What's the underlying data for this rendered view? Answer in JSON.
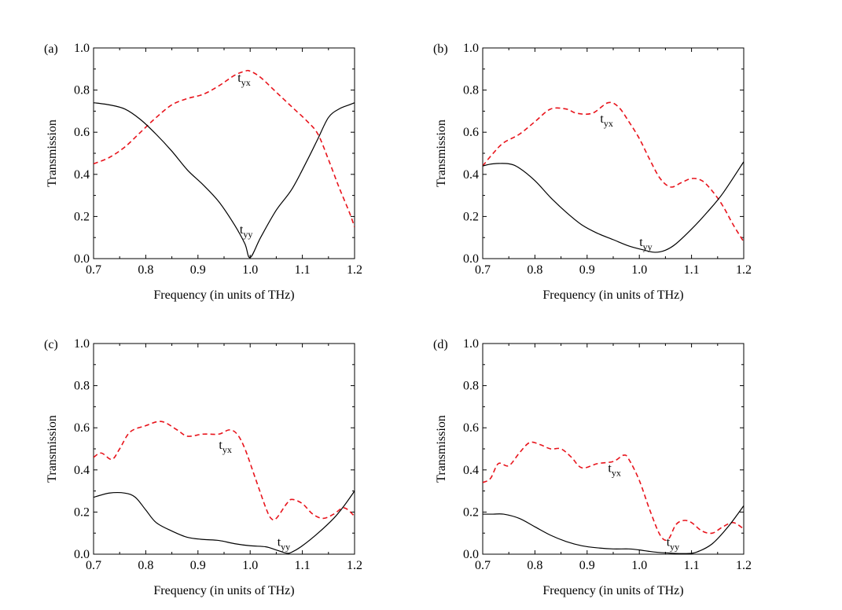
{
  "figure": {
    "colors": {
      "tyx": "#e8141c",
      "tyy": "#000000",
      "axis": "#000000"
    }
  },
  "chart_data": [
    {
      "type": "line",
      "panel_label": "(a)",
      "xlabel": "Frequency (in units of THz)",
      "ylabel": "Transmission",
      "xlim": [
        0.7,
        1.2
      ],
      "ylim": [
        0.0,
        1.0
      ],
      "xticks": [
        "0.7",
        "0.8",
        "0.9",
        "1.0",
        "1.1",
        "1.2"
      ],
      "yticks": [
        "0.0",
        "0.2",
        "0.4",
        "0.6",
        "0.8",
        "1.0"
      ],
      "grid": false,
      "series": [
        {
          "name": "tyx",
          "label_main": "t",
          "label_sub": "yx",
          "style": "dashed",
          "color": "#e8141c",
          "label_at": [
            0.976,
            0.84
          ],
          "x": [
            0.7,
            0.73,
            0.76,
            0.79,
            0.82,
            0.85,
            0.88,
            0.91,
            0.94,
            0.97,
            0.99,
            1.0,
            1.02,
            1.05,
            1.08,
            1.11,
            1.13,
            1.15,
            1.17,
            1.19,
            1.2
          ],
          "y": [
            0.45,
            0.48,
            0.53,
            0.6,
            0.67,
            0.73,
            0.76,
            0.78,
            0.82,
            0.87,
            0.89,
            0.89,
            0.86,
            0.79,
            0.72,
            0.65,
            0.59,
            0.47,
            0.34,
            0.22,
            0.15
          ]
        },
        {
          "name": "tyy",
          "label_main": "t",
          "label_sub": "yy",
          "style": "solid",
          "color": "#000000",
          "label_at": [
            0.98,
            0.12
          ],
          "x": [
            0.7,
            0.73,
            0.76,
            0.79,
            0.82,
            0.85,
            0.88,
            0.91,
            0.94,
            0.97,
            0.99,
            1.0,
            1.02,
            1.05,
            1.08,
            1.11,
            1.13,
            1.15,
            1.17,
            1.19,
            1.2
          ],
          "y": [
            0.74,
            0.73,
            0.71,
            0.66,
            0.59,
            0.51,
            0.42,
            0.35,
            0.27,
            0.16,
            0.07,
            0.005,
            0.1,
            0.23,
            0.33,
            0.47,
            0.57,
            0.67,
            0.71,
            0.73,
            0.74
          ]
        }
      ]
    },
    {
      "type": "line",
      "panel_label": "(b)",
      "xlabel": "Frequency (in units of THz)",
      "ylabel": "Transmission",
      "xlim": [
        0.7,
        1.2
      ],
      "ylim": [
        0.0,
        1.0
      ],
      "xticks": [
        "0.7",
        "0.8",
        "0.9",
        "1.0",
        "1.1",
        "1.2"
      ],
      "yticks": [
        "0.0",
        "0.2",
        "0.4",
        "0.6",
        "0.8",
        "1.0"
      ],
      "grid": false,
      "series": [
        {
          "name": "tyx",
          "label_main": "t",
          "label_sub": "yx",
          "style": "dashed",
          "color": "#e8141c",
          "label_at": [
            0.925,
            0.645
          ],
          "x": [
            0.7,
            0.72,
            0.74,
            0.77,
            0.8,
            0.83,
            0.86,
            0.88,
            0.91,
            0.94,
            0.96,
            0.98,
            1.0,
            1.02,
            1.04,
            1.06,
            1.08,
            1.1,
            1.12,
            1.14,
            1.16,
            1.18,
            1.2
          ],
          "y": [
            0.44,
            0.5,
            0.55,
            0.59,
            0.65,
            0.71,
            0.71,
            0.69,
            0.69,
            0.74,
            0.72,
            0.65,
            0.57,
            0.47,
            0.38,
            0.34,
            0.36,
            0.38,
            0.37,
            0.32,
            0.25,
            0.16,
            0.08
          ]
        },
        {
          "name": "tyy",
          "label_main": "t",
          "label_sub": "yy",
          "style": "solid",
          "color": "#000000",
          "label_at": [
            1.0,
            0.06
          ],
          "x": [
            0.7,
            0.72,
            0.75,
            0.77,
            0.8,
            0.83,
            0.86,
            0.89,
            0.92,
            0.95,
            0.98,
            1.01,
            1.03,
            1.05,
            1.07,
            1.1,
            1.13,
            1.16,
            1.2
          ],
          "y": [
            0.44,
            0.45,
            0.45,
            0.43,
            0.37,
            0.29,
            0.22,
            0.16,
            0.12,
            0.09,
            0.06,
            0.04,
            0.03,
            0.04,
            0.07,
            0.14,
            0.22,
            0.31,
            0.46
          ]
        }
      ]
    },
    {
      "type": "line",
      "panel_label": "(c)",
      "xlabel": "Frequency (in units of THz)",
      "ylabel": "Transmission",
      "xlim": [
        0.7,
        1.2
      ],
      "ylim": [
        0.0,
        1.0
      ],
      "xticks": [
        "0.7",
        "0.8",
        "0.9",
        "1.0",
        "1.1",
        "1.2"
      ],
      "yticks": [
        "0.0",
        "0.2",
        "0.4",
        "0.6",
        "0.8",
        "1.0"
      ],
      "grid": false,
      "series": [
        {
          "name": "tyx",
          "label_main": "t",
          "label_sub": "yx",
          "style": "dashed",
          "color": "#e8141c",
          "label_at": [
            0.94,
            0.5
          ],
          "x": [
            0.7,
            0.715,
            0.735,
            0.75,
            0.77,
            0.8,
            0.83,
            0.86,
            0.88,
            0.91,
            0.94,
            0.96,
            0.975,
            0.99,
            1.01,
            1.03,
            1.04,
            1.05,
            1.07,
            1.08,
            1.1,
            1.12,
            1.14,
            1.16,
            1.18,
            1.2
          ],
          "y": [
            0.46,
            0.48,
            0.45,
            0.5,
            0.58,
            0.61,
            0.63,
            0.59,
            0.56,
            0.57,
            0.57,
            0.59,
            0.57,
            0.5,
            0.36,
            0.22,
            0.17,
            0.17,
            0.24,
            0.26,
            0.24,
            0.19,
            0.17,
            0.19,
            0.22,
            0.18
          ]
        },
        {
          "name": "tyy",
          "label_main": "t",
          "label_sub": "yy",
          "style": "solid",
          "color": "#000000",
          "label_at": [
            1.052,
            0.04
          ],
          "x": [
            0.7,
            0.73,
            0.76,
            0.78,
            0.8,
            0.82,
            0.85,
            0.88,
            0.91,
            0.94,
            0.97,
            1.0,
            1.03,
            1.05,
            1.07,
            1.08,
            1.1,
            1.13,
            1.16,
            1.18,
            1.2
          ],
          "y": [
            0.27,
            0.29,
            0.29,
            0.27,
            0.21,
            0.15,
            0.11,
            0.08,
            0.07,
            0.065,
            0.05,
            0.04,
            0.035,
            0.02,
            0.005,
            0.01,
            0.04,
            0.1,
            0.17,
            0.23,
            0.3
          ]
        }
      ]
    },
    {
      "type": "line",
      "panel_label": "(d)",
      "xlabel": "Frequency (in units of THz)",
      "ylabel": "Transmission",
      "xlim": [
        0.7,
        1.2
      ],
      "ylim": [
        0.0,
        1.0
      ],
      "xticks": [
        "0.7",
        "0.8",
        "0.9",
        "1.0",
        "1.1",
        "1.2"
      ],
      "yticks": [
        "0.0",
        "0.2",
        "0.4",
        "0.6",
        "0.8",
        "1.0"
      ],
      "grid": false,
      "series": [
        {
          "name": "tyx",
          "label_main": "t",
          "label_sub": "yx",
          "style": "dashed",
          "color": "#e8141c",
          "label_at": [
            0.94,
            0.39
          ],
          "x": [
            0.7,
            0.715,
            0.73,
            0.75,
            0.77,
            0.79,
            0.81,
            0.83,
            0.85,
            0.87,
            0.89,
            0.92,
            0.95,
            0.97,
            0.98,
            1.0,
            1.02,
            1.04,
            1.055,
            1.07,
            1.085,
            1.1,
            1.12,
            1.14,
            1.16,
            1.18,
            1.2
          ],
          "y": [
            0.34,
            0.36,
            0.43,
            0.42,
            0.48,
            0.53,
            0.52,
            0.5,
            0.5,
            0.46,
            0.41,
            0.43,
            0.44,
            0.47,
            0.45,
            0.35,
            0.21,
            0.09,
            0.07,
            0.14,
            0.16,
            0.15,
            0.11,
            0.1,
            0.13,
            0.15,
            0.12
          ]
        },
        {
          "name": "tyy",
          "label_main": "t",
          "label_sub": "yy",
          "style": "solid",
          "color": "#000000",
          "label_at": [
            1.052,
            0.04
          ],
          "x": [
            0.7,
            0.72,
            0.74,
            0.77,
            0.8,
            0.83,
            0.86,
            0.89,
            0.92,
            0.95,
            0.98,
            1.0,
            1.03,
            1.06,
            1.09,
            1.11,
            1.14,
            1.17,
            1.2
          ],
          "y": [
            0.19,
            0.19,
            0.19,
            0.17,
            0.13,
            0.09,
            0.06,
            0.04,
            0.03,
            0.025,
            0.025,
            0.02,
            0.01,
            0.005,
            0.003,
            0.01,
            0.05,
            0.13,
            0.23
          ]
        }
      ]
    }
  ]
}
